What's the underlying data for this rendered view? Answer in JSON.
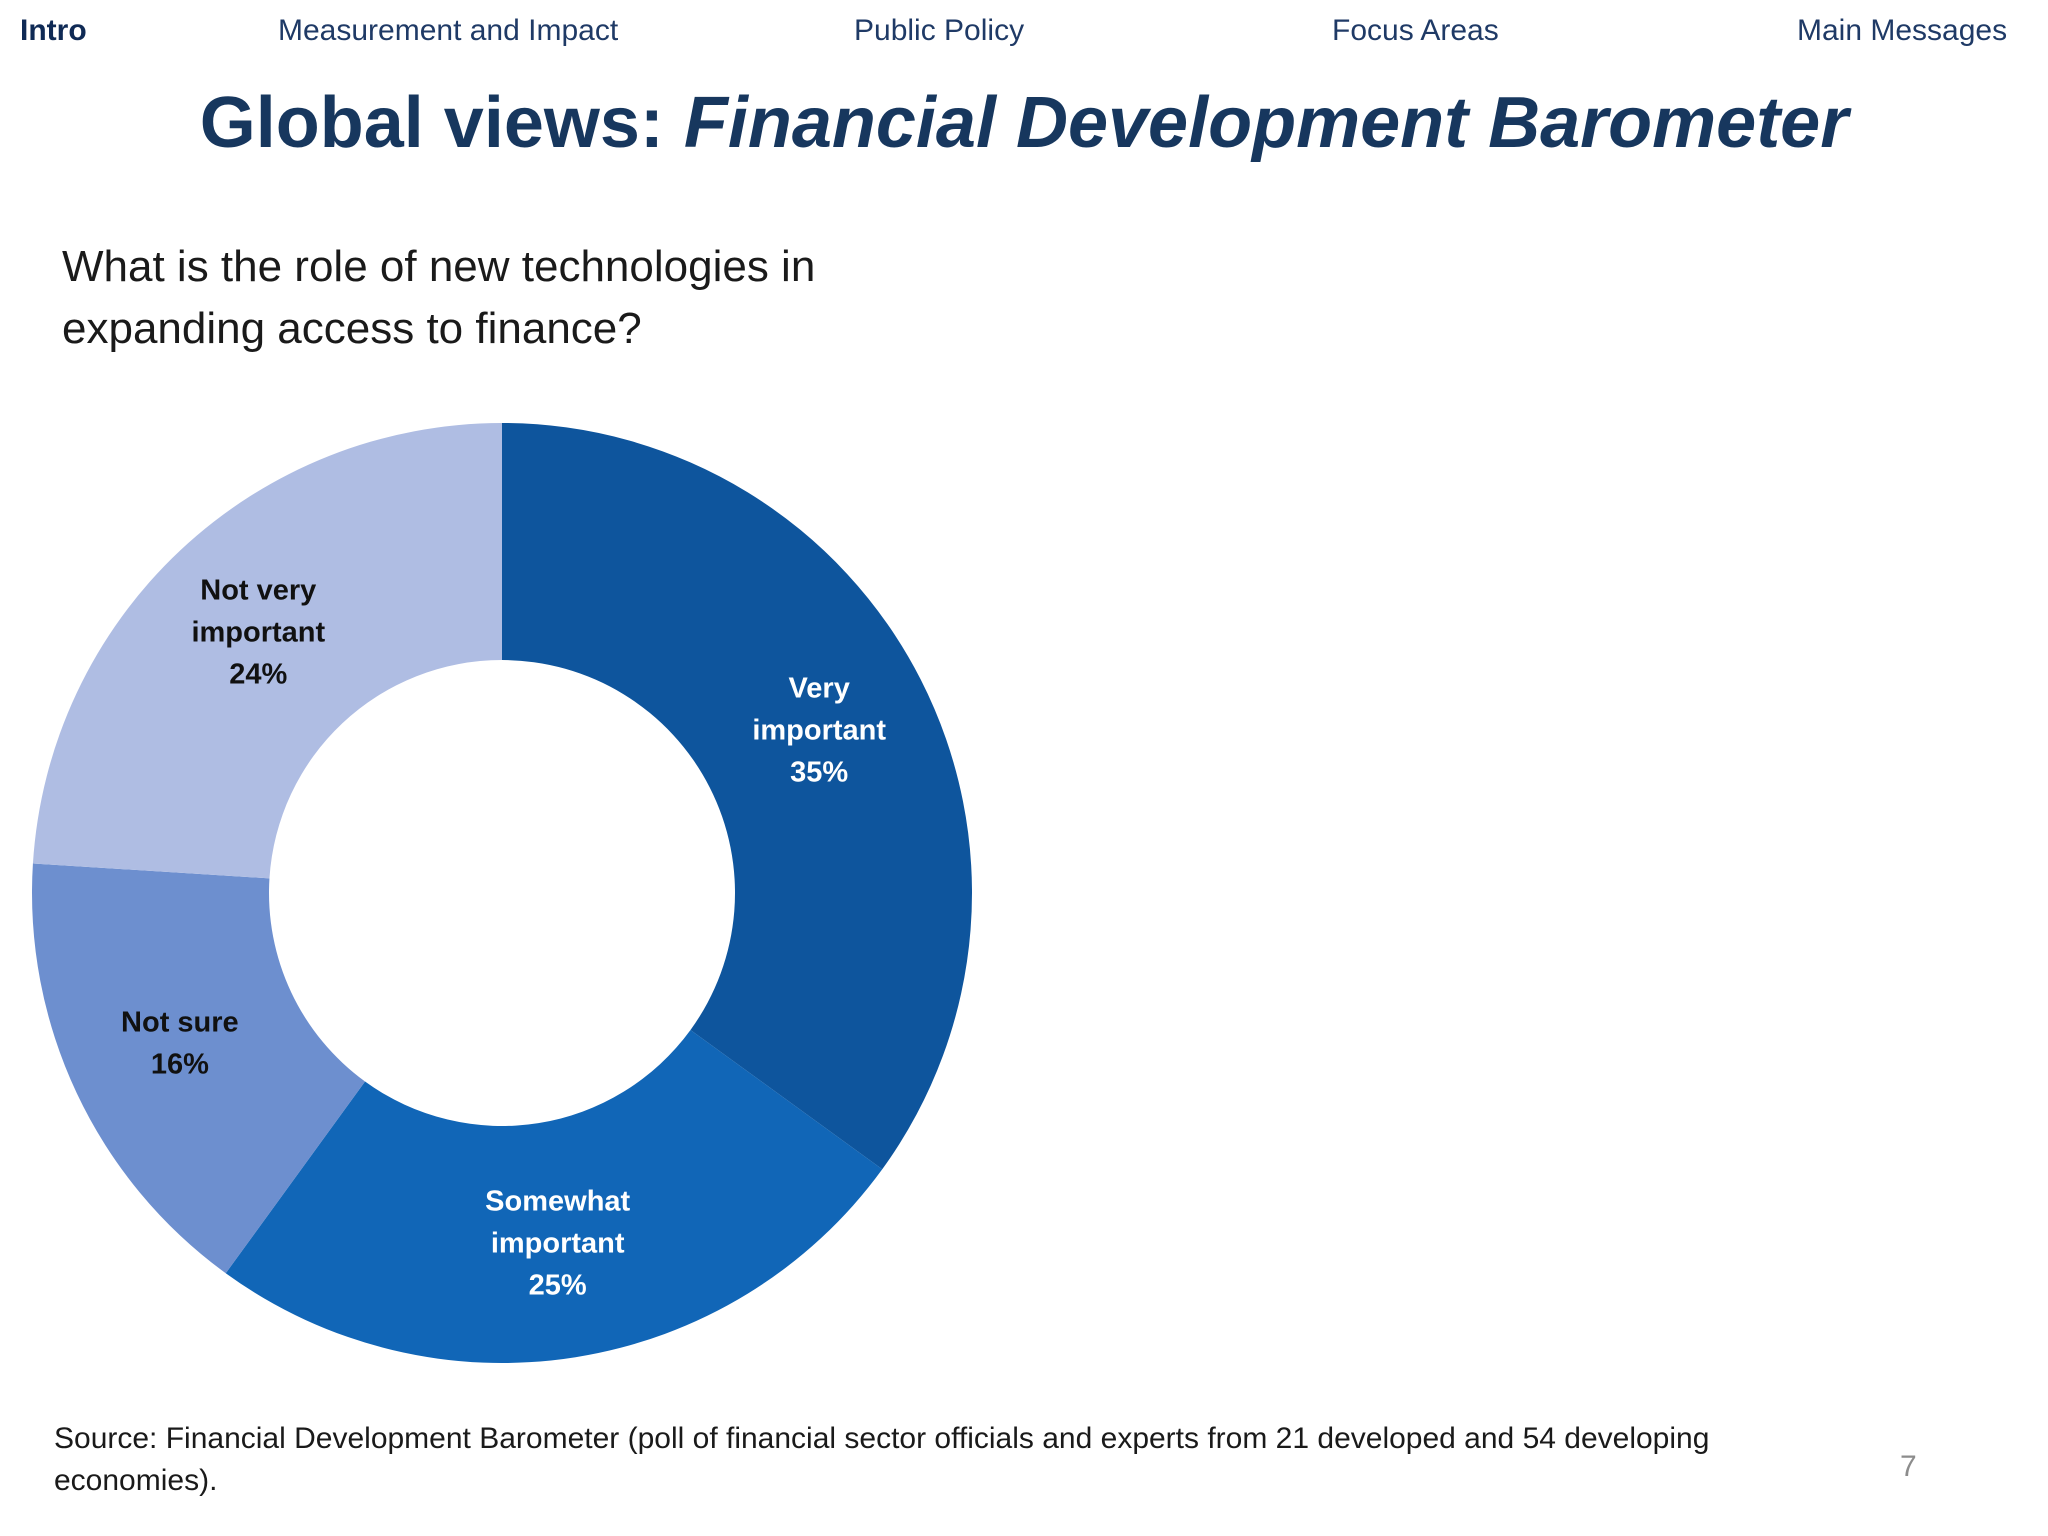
{
  "nav": {
    "items": [
      {
        "label": "Intro",
        "active": true
      },
      {
        "label": "Measurement and Impact",
        "active": false
      },
      {
        "label": "Public Policy",
        "active": false
      },
      {
        "label": "Focus Areas",
        "active": false
      },
      {
        "label": "Main Messages",
        "active": false
      }
    ]
  },
  "title": {
    "prefix": "Global views: ",
    "italic": "Financial Development Barometer"
  },
  "question": "What is the role of new technologies in expanding access to finance?",
  "source": "Source: Financial Development Barometer (poll of financial sector officials and experts from 21 developed and 54 developing economies).",
  "page_number": "7",
  "chart_data": {
    "type": "pie",
    "donut": true,
    "start": "12 o'clock, clockwise",
    "slices": [
      {
        "label_lines": [
          "Very",
          "important",
          "35%"
        ],
        "value": 35,
        "color": "#0e559d",
        "text_color": "#ffffff"
      },
      {
        "label_lines": [
          "Somewhat",
          "important",
          "25%"
        ],
        "value": 25,
        "color": "#1166b7",
        "text_color": "#ffffff"
      },
      {
        "label_lines": [
          "Not sure",
          "16%"
        ],
        "value": 16,
        "color": "#6d8fcf",
        "text_color": "#111111"
      },
      {
        "label_lines": [
          "Not very",
          "important",
          "24%"
        ],
        "value": 24,
        "color": "#afbde3",
        "text_color": "#111111"
      }
    ]
  }
}
